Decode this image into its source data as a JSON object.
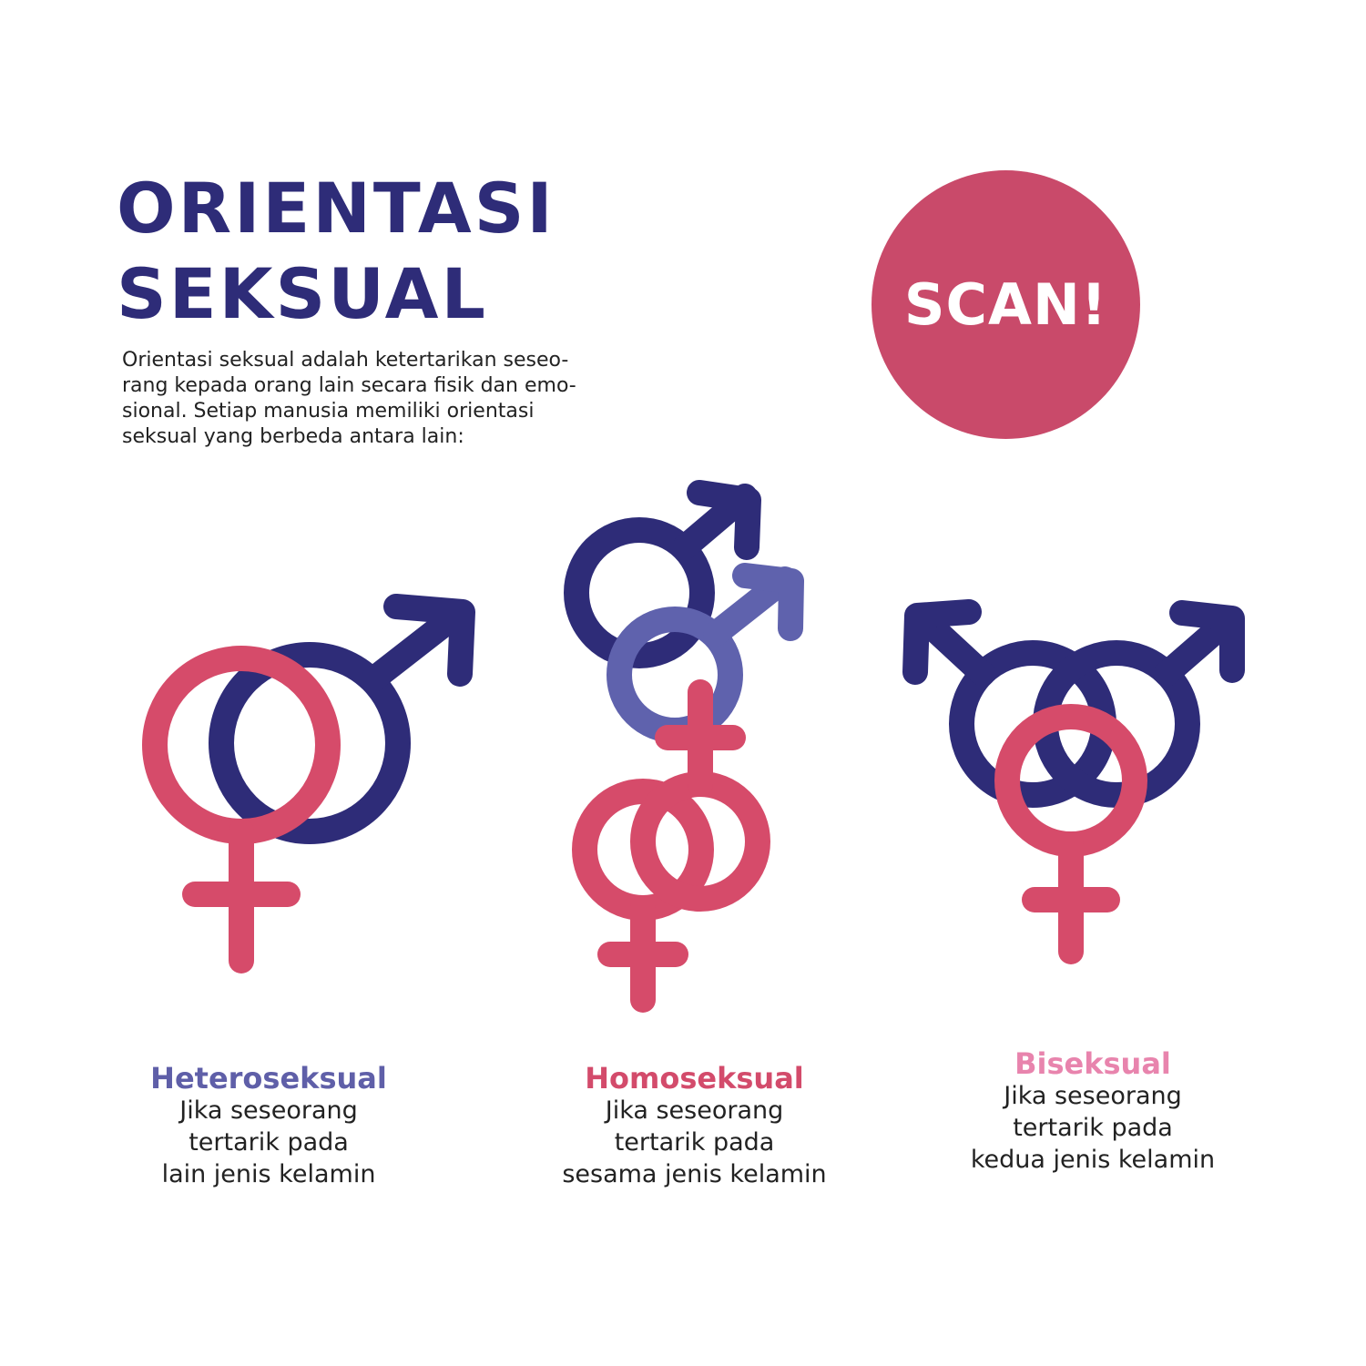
{
  "header": {
    "title_lines": [
      "ORIENTASI",
      "SEKSUAL"
    ]
  },
  "intro_lines": [
    "Orientasi seksual adalah ketertarikan seseo-",
    "rang kepada orang lain secara fisik dan emo-",
    "sional. Setiap manusia memiliki orientasi",
    "seksual yang berbeda antara lain:"
  ],
  "badge": {
    "label": "SCAN!"
  },
  "colors": {
    "navy": "#2e2c78",
    "lavender": "#5f62ad",
    "pink": "#d64b6a",
    "badge": "#c94a6a",
    "light_pink": "#e884ad"
  },
  "orientations": [
    {
      "title": "Heteroseksual",
      "lines": [
        "Jika seseorang",
        "tertarik pada",
        "lain jenis kelamin"
      ]
    },
    {
      "title": "Homoseksual",
      "lines": [
        "Jika seseorang",
        "tertarik pada",
        "sesama jenis kelamin"
      ]
    },
    {
      "title": "Biseksual",
      "lines": [
        "Jika seseorang",
        "tertarik pada",
        "kedua jenis kelamin"
      ]
    }
  ]
}
